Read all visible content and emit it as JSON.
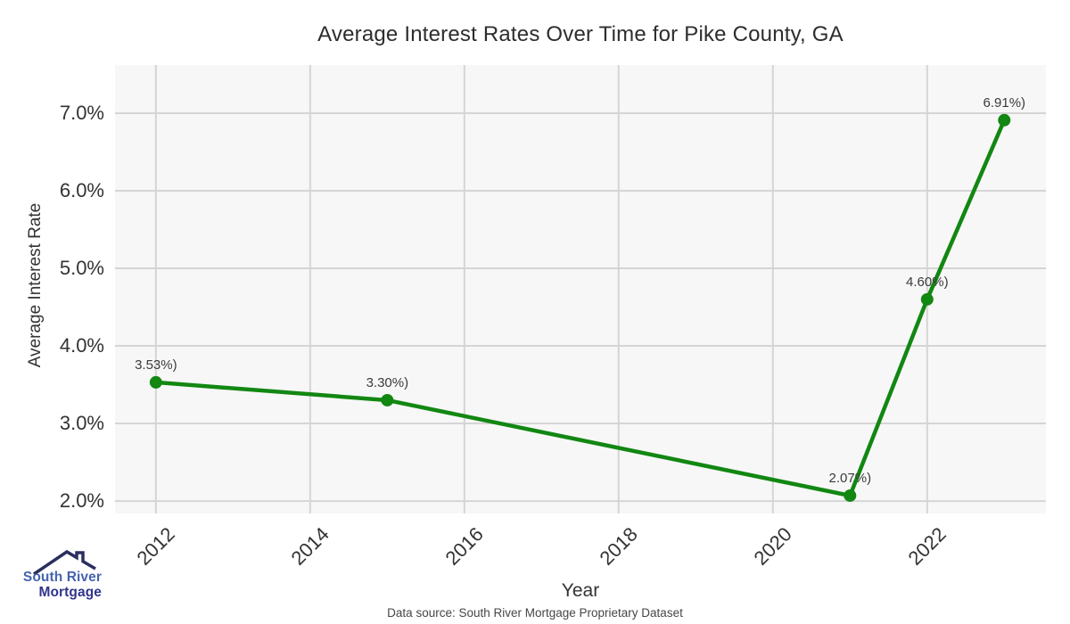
{
  "chart_data": {
    "type": "line",
    "title": "Average Interest Rates Over Time for Pike County, GA",
    "xlabel": "Year",
    "ylabel": "Average Interest Rate",
    "x": [
      2012,
      2015,
      2021,
      2022,
      2023
    ],
    "y": [
      3.53,
      3.3,
      2.07,
      4.6,
      6.91
    ],
    "point_labels": [
      "3.53%)",
      "3.30%)",
      "2.07%)",
      "4.60%)",
      "6.91%)"
    ],
    "x_tick_values": [
      2012,
      2014,
      2016,
      2018,
      2020,
      2022
    ],
    "x_tick_labels": [
      "2012",
      "2014",
      "2016",
      "2018",
      "2020",
      "2022"
    ],
    "y_tick_values": [
      2,
      3,
      4,
      5,
      6,
      7
    ],
    "y_tick_labels": [
      "2.0%",
      "3.0%",
      "4.0%",
      "5.0%",
      "6.0%",
      "7.0%"
    ],
    "xlim": [
      2011.47,
      2023.54
    ],
    "ylim": [
      1.84,
      7.62
    ],
    "grid": true,
    "legend": "none",
    "marker_radius": 7,
    "line_width": 4.5
  },
  "colors": {
    "line": "#128712",
    "marker": "#128712",
    "grid": "#d5d5d5",
    "panel_bg": "#f7f7f7",
    "point_label_text": "#3a3a3a"
  },
  "footer": {
    "source": "Data source: South River Mortgage Proprietary Dataset"
  },
  "logo": {
    "line1": "South River",
    "line2": "Mortgage",
    "line1_color": "#4663ae",
    "line2_color": "#32348b",
    "roof_color": "#2a2f5e"
  }
}
